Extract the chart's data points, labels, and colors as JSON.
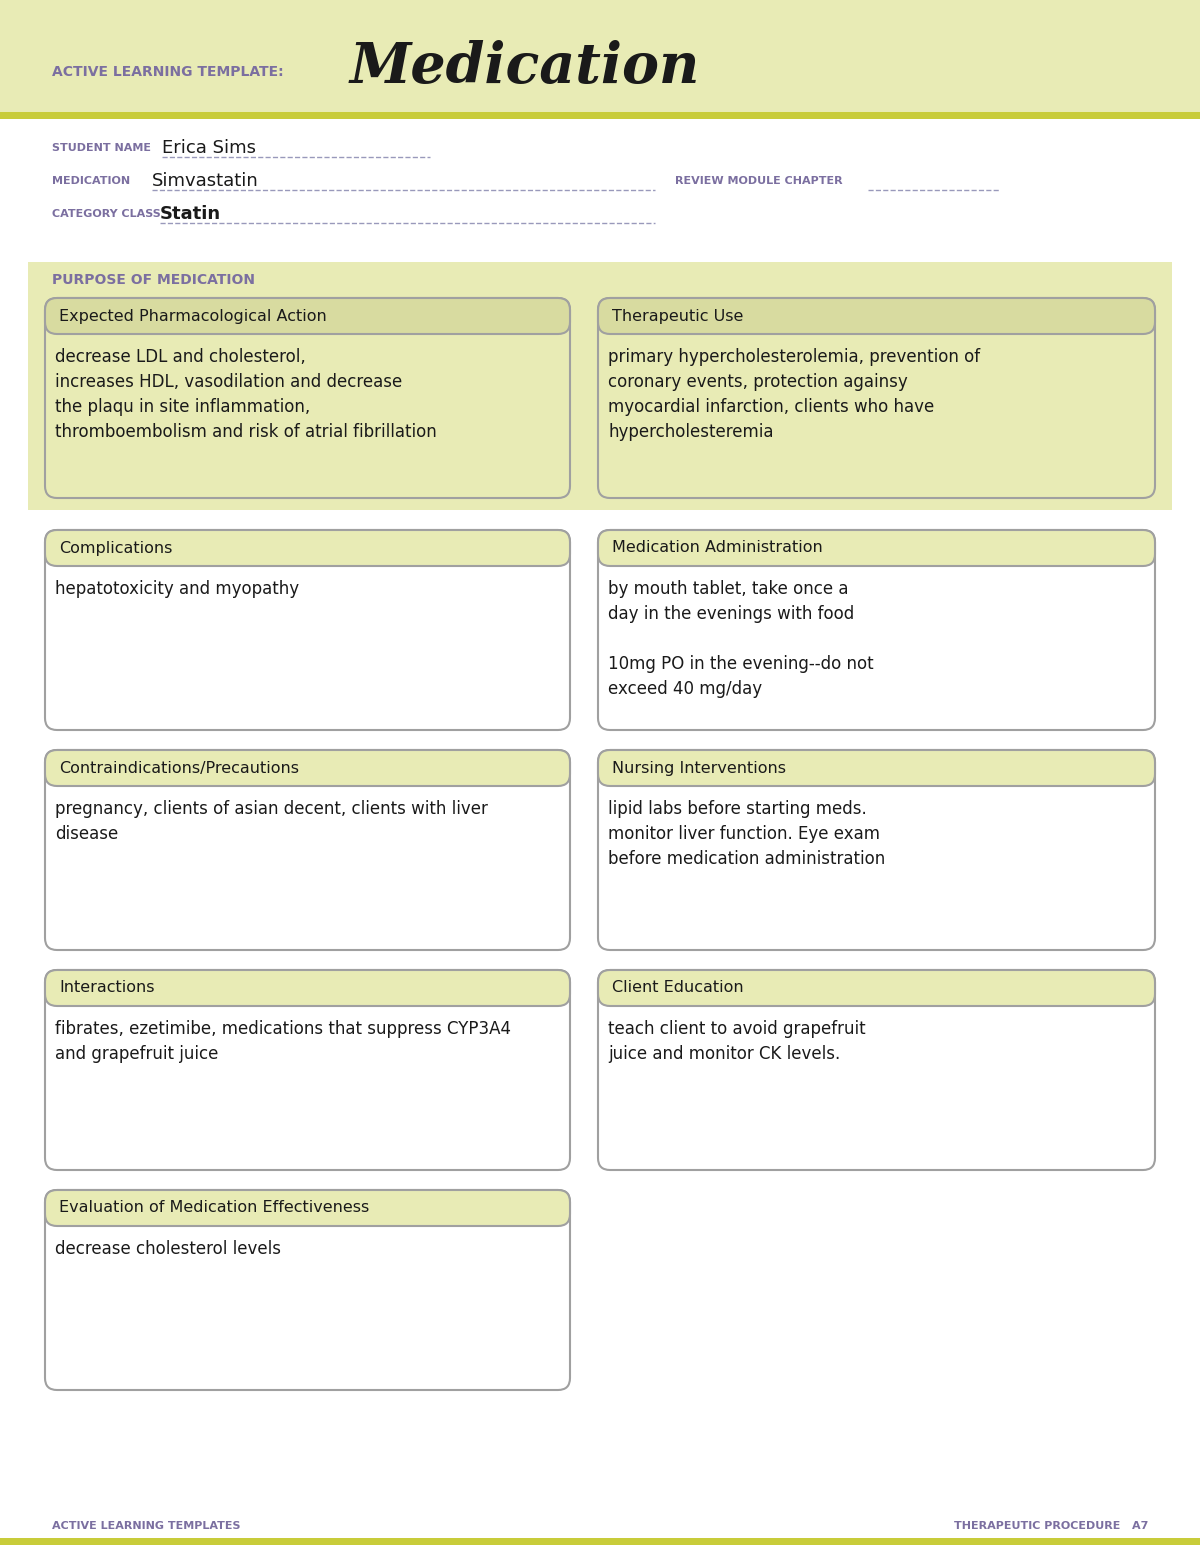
{
  "page_bg": "#ffffff",
  "header_bg": "#e8ebb5",
  "header_stripe_color": "#c8cc3a",
  "section_bg": "#e8ebb5",
  "box_title_bg": "#d8dba0",
  "box_border": "#a0a0a0",
  "white": "#ffffff",
  "purple_label": "#7b6fa0",
  "dark_text": "#1a1a1a",
  "underline_color": "#9999bb",
  "title_label": "ACTIVE LEARNING TEMPLATE:",
  "title_main": "Medication",
  "student_label": "STUDENT NAME",
  "student_value": "Erica Sims",
  "medication_label": "MEDICATION",
  "medication_value": "Simvastatin",
  "review_label": "REVIEW MODULE CHAPTER",
  "category_label": "CATEGORY CLASS",
  "category_value": "Statin",
  "purpose_label": "PURPOSE OF MEDICATION",
  "box1_title": "Expected Pharmacological Action",
  "box1_content": "decrease LDL and cholesterol,\nincreases HDL, vasodilation and decrease\nthe plaqu in site inflammation,\nthromboembolism and risk of atrial fibrillation",
  "box2_title": "Therapeutic Use",
  "box2_content": "primary hypercholesterolemia, prevention of\ncoronary events, protection againsy\nmyocardial infarction, clients who have\nhypercholesteremia",
  "box3_title": "Complications",
  "box3_content": "hepatotoxicity and myopathy",
  "box4_title": "Medication Administration",
  "box4_content": "by mouth tablet, take once a\nday in the evenings with food\n\n10mg PO in the evening--do not\nexceed 40 mg/day",
  "box5_title": "Contraindications/Precautions",
  "box5_content": "pregnancy, clients of asian decent, clients with liver\ndisease",
  "box6_title": "Nursing Interventions",
  "box6_content": "lipid labs before starting meds.\nmonitor liver function. Eye exam\nbefore medication administration",
  "box7_title": "Interactions",
  "box7_content": "fibrates, ezetimibe, medications that suppress CYP3A4\nand grapefruit juice",
  "box8_title": "Client Education",
  "box8_content": "teach client to avoid grapefruit\njuice and monitor CK levels.",
  "box9_title": "Evaluation of Medication Effectiveness",
  "box9_content": "decrease cholesterol levels",
  "footer_left": "ACTIVE LEARNING TEMPLATES",
  "footer_right": "THERAPEUTIC PROCEDURE   A7"
}
